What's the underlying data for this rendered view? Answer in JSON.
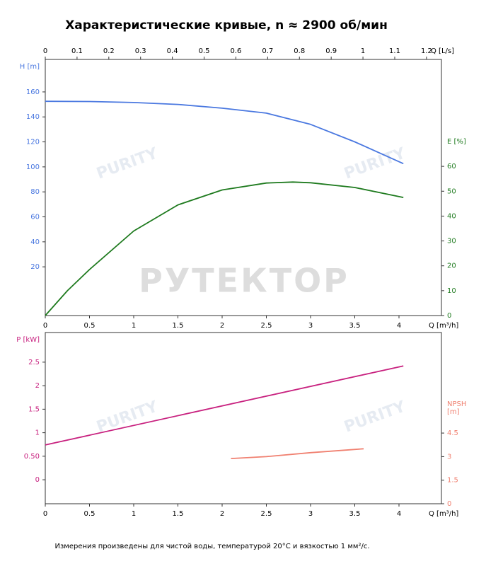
{
  "title": "Характеристические кривые, n ≈ 2900 об/мин",
  "watermark": "РУТЕКТОР",
  "logo": "PURITY",
  "footnote": "Измерения произведены для чистой воды, температурой 20°C и вязкостью 1 мм²/с.",
  "chart_data": [
    {
      "type": "line",
      "xlabel": "Q [m³/h]",
      "xlim": [
        0,
        4.48
      ],
      "xticks": [
        0,
        0.5,
        1,
        1.5,
        2,
        2.5,
        3,
        3.5,
        4
      ],
      "x2label": "Q [L/s]",
      "x2lim": [
        0,
        1.247
      ],
      "x2ticks": [
        0,
        0.1,
        0.2,
        0.3,
        0.4,
        0.5,
        0.6,
        0.7,
        0.8,
        0.9,
        1,
        1.1,
        1.2
      ],
      "ylabel": "H [m]",
      "ylim": [
        -19,
        186
      ],
      "yticks": [
        20,
        40,
        60,
        80,
        100,
        120,
        140,
        160
      ],
      "ycolor": "#4a78e0",
      "y2label": [
        "E [%]"
      ],
      "y2lim": [
        0,
        103
      ],
      "y2ticks": [
        0,
        10,
        20,
        30,
        40,
        50,
        60
      ],
      "y2color": "#1e7a1e",
      "series": [
        {
          "name": "H",
          "color": "#4a78e0",
          "x": [
            0,
            0.5,
            1,
            1.5,
            2,
            2.5,
            3,
            3.5,
            4.05
          ],
          "values": [
            152.5,
            152.3,
            151.5,
            150,
            147,
            143,
            134,
            120,
            102.6
          ]
        },
        {
          "name": "E",
          "color": "#1e7a1e",
          "axis": "y2",
          "x": [
            0,
            0.25,
            0.5,
            1,
            1.5,
            2,
            2.5,
            2.8,
            3,
            3.5,
            4.05
          ],
          "values": [
            0,
            10,
            18.5,
            34,
            44.5,
            50.5,
            53.3,
            53.7,
            53.4,
            51.5,
            47.5
          ]
        }
      ]
    },
    {
      "type": "line",
      "xlabel": "Q [m³/h]",
      "xlim": [
        0,
        4.48
      ],
      "xticks": [
        0,
        0.5,
        1,
        1.5,
        2,
        2.5,
        3,
        3.5,
        4
      ],
      "ylabel": "P [kW]",
      "ylim": [
        -0.51,
        3.13
      ],
      "yticks": [
        0,
        {
          "value": 0.5,
          "label": "0.50"
        },
        1,
        1.5,
        2,
        2.5
      ],
      "ycolor": "#c8217f",
      "y2label": [
        "NPSH",
        "[m]"
      ],
      "y2lim": [
        0,
        10.9
      ],
      "y2ticks": [
        0,
        1.5,
        3,
        4.5
      ],
      "y2color": "#f08070",
      "series": [
        {
          "name": "P",
          "color": "#c8217f",
          "x": [
            0,
            4.05
          ],
          "values": [
            0.74,
            2.42
          ]
        },
        {
          "name": "NPSH",
          "color": "#f08070",
          "axis": "y2",
          "x": [
            2.1,
            2.5,
            3,
            3.6
          ],
          "values": [
            2.88,
            3.0,
            3.25,
            3.5
          ]
        }
      ]
    }
  ]
}
